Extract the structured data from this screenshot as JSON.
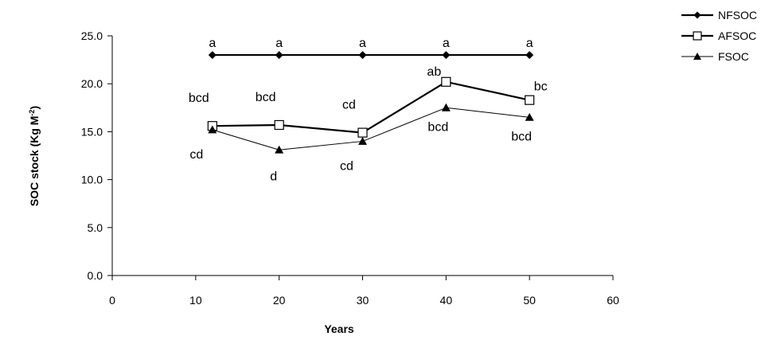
{
  "chart_data": {
    "type": "line",
    "title": "",
    "xlabel": "Years",
    "ylabel_main": "SOC stock (Kg M",
    "ylabel_sup": "-2",
    "ylabel_end": ")",
    "xlim": [
      0,
      60
    ],
    "ylim": [
      0,
      25
    ],
    "x_ticks": [
      0,
      10,
      20,
      30,
      40,
      50,
      60
    ],
    "x_tick_labels": [
      "0",
      "10",
      "20",
      "30",
      "40",
      "50",
      "60"
    ],
    "y_ticks": [
      0,
      5,
      10,
      15,
      20,
      25
    ],
    "y_tick_labels": [
      "0.0",
      "5.0",
      "10.0",
      "15.0",
      "20.0",
      "25.0"
    ],
    "grid": false,
    "legend_position": "top-right",
    "x": [
      12,
      20,
      30,
      40,
      50
    ],
    "series": [
      {
        "name": "NFSOC",
        "values": [
          23.0,
          23.0,
          23.0,
          23.0,
          23.0
        ],
        "marker": "diamond",
        "color": "#000000",
        "labels": [
          "a",
          "a",
          "a",
          "a",
          "a"
        ]
      },
      {
        "name": "AFSOC",
        "values": [
          15.6,
          15.7,
          14.9,
          20.2,
          18.3
        ],
        "marker": "square-open",
        "color": "#000000",
        "labels": [
          "bcd",
          "bcd",
          "cd",
          "ab",
          "bc"
        ]
      },
      {
        "name": "FSOC",
        "values": [
          15.2,
          13.1,
          14.0,
          17.5,
          16.5
        ],
        "marker": "triangle",
        "color": "#000000",
        "labels": [
          "cd",
          "d",
          "cd",
          "bcd",
          "bcd"
        ]
      }
    ]
  }
}
